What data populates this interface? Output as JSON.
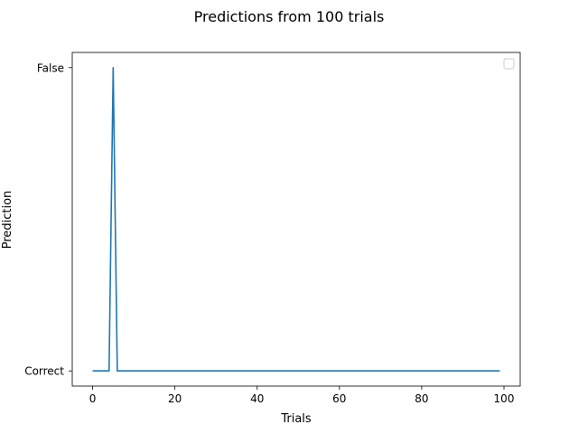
{
  "chart_data": {
    "type": "line",
    "title": "Predictions from 100 trials",
    "xlabel": "Trials",
    "ylabel": "Prediction",
    "xlim": [
      -4.95,
      103.95
    ],
    "ylim": [
      -0.05,
      1.05
    ],
    "x_ticks": [
      0,
      20,
      40,
      60,
      80,
      100
    ],
    "y_ticks": [
      {
        "value": 0,
        "label": "Correct"
      },
      {
        "value": 1,
        "label": "False"
      }
    ],
    "grid": false,
    "legend": {
      "position": "top-right",
      "entries": []
    },
    "series": [
      {
        "color": "#1f77b4",
        "x": [
          0,
          1,
          2,
          3,
          4,
          5,
          6,
          7,
          8,
          9,
          10,
          11,
          12,
          13,
          14,
          15,
          16,
          17,
          18,
          19,
          20,
          21,
          22,
          23,
          24,
          25,
          26,
          27,
          28,
          29,
          30,
          31,
          32,
          33,
          34,
          35,
          36,
          37,
          38,
          39,
          40,
          41,
          42,
          43,
          44,
          45,
          46,
          47,
          48,
          49,
          50,
          51,
          52,
          53,
          54,
          55,
          56,
          57,
          58,
          59,
          60,
          61,
          62,
          63,
          64,
          65,
          66,
          67,
          68,
          69,
          70,
          71,
          72,
          73,
          74,
          75,
          76,
          77,
          78,
          79,
          80,
          81,
          82,
          83,
          84,
          85,
          86,
          87,
          88,
          89,
          90,
          91,
          92,
          93,
          94,
          95,
          96,
          97,
          98,
          99
        ],
        "y": [
          0,
          0,
          0,
          0,
          0,
          1,
          0,
          0,
          0,
          0,
          0,
          0,
          0,
          0,
          0,
          0,
          0,
          0,
          0,
          0,
          0,
          0,
          0,
          0,
          0,
          0,
          0,
          0,
          0,
          0,
          0,
          0,
          0,
          0,
          0,
          0,
          0,
          0,
          0,
          0,
          0,
          0,
          0,
          0,
          0,
          0,
          0,
          0,
          0,
          0,
          0,
          0,
          0,
          0,
          0,
          0,
          0,
          0,
          0,
          0,
          0,
          0,
          0,
          0,
          0,
          0,
          0,
          0,
          0,
          0,
          0,
          0,
          0,
          0,
          0,
          0,
          0,
          0,
          0,
          0,
          0,
          0,
          0,
          0,
          0,
          0,
          0,
          0,
          0,
          0,
          0,
          0,
          0,
          0,
          0,
          0,
          0,
          0,
          0,
          0
        ]
      }
    ]
  }
}
